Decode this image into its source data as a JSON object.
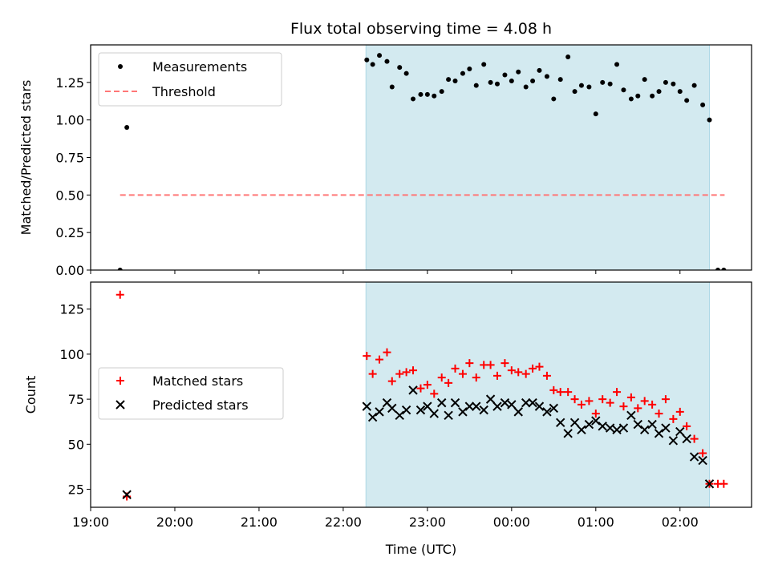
{
  "chart_data": {
    "title": "Flux total observing time = 4.08 h",
    "xlabel": "Time (UTC)",
    "x_ticks": [
      "19:00",
      "20:00",
      "21:00",
      "22:00",
      "23:00",
      "00:00",
      "01:00",
      "02:00"
    ],
    "xlim_hours": [
      19.0,
      26.85
    ],
    "shaded_interval_hours": [
      22.27,
      26.35
    ],
    "shade_color": "#d3eaf0",
    "panels": [
      {
        "type": "scatter",
        "ylabel": "Matched/Predicted stars",
        "ylim": [
          0,
          1.5
        ],
        "y_ticks": [
          "0.00",
          "0.25",
          "0.50",
          "0.75",
          "1.00",
          "1.25"
        ],
        "y_tick_values": [
          0,
          0.25,
          0.5,
          0.75,
          1.0,
          1.25
        ],
        "legend": {
          "position": "upper-left",
          "entries": [
            "Measurements",
            "Threshold"
          ]
        },
        "series": [
          {
            "name": "Measurements",
            "marker": "dot",
            "color": "#000000",
            "points": [
              [
                19.35,
                0.0
              ],
              [
                19.43,
                0.95
              ],
              [
                22.28,
                1.4
              ],
              [
                22.35,
                1.37
              ],
              [
                22.43,
                1.43
              ],
              [
                22.52,
                1.39
              ],
              [
                22.58,
                1.22
              ],
              [
                22.67,
                1.35
              ],
              [
                22.75,
                1.31
              ],
              [
                22.83,
                1.14
              ],
              [
                22.92,
                1.17
              ],
              [
                23.0,
                1.17
              ],
              [
                23.08,
                1.16
              ],
              [
                23.17,
                1.19
              ],
              [
                23.25,
                1.27
              ],
              [
                23.33,
                1.26
              ],
              [
                23.42,
                1.31
              ],
              [
                23.5,
                1.34
              ],
              [
                23.58,
                1.23
              ],
              [
                23.67,
                1.37
              ],
              [
                23.75,
                1.25
              ],
              [
                23.83,
                1.24
              ],
              [
                23.92,
                1.3
              ],
              [
                24.0,
                1.26
              ],
              [
                24.08,
                1.32
              ],
              [
                24.17,
                1.22
              ],
              [
                24.25,
                1.26
              ],
              [
                24.33,
                1.33
              ],
              [
                24.42,
                1.29
              ],
              [
                24.5,
                1.14
              ],
              [
                24.58,
                1.27
              ],
              [
                24.67,
                1.42
              ],
              [
                24.75,
                1.19
              ],
              [
                24.83,
                1.23
              ],
              [
                24.92,
                1.22
              ],
              [
                25.0,
                1.04
              ],
              [
                25.08,
                1.25
              ],
              [
                25.17,
                1.24
              ],
              [
                25.25,
                1.37
              ],
              [
                25.33,
                1.2
              ],
              [
                25.42,
                1.14
              ],
              [
                25.5,
                1.16
              ],
              [
                25.58,
                1.27
              ],
              [
                25.67,
                1.16
              ],
              [
                25.75,
                1.19
              ],
              [
                25.83,
                1.25
              ],
              [
                25.92,
                1.24
              ],
              [
                26.0,
                1.19
              ],
              [
                26.08,
                1.13
              ],
              [
                26.17,
                1.23
              ],
              [
                26.27,
                1.1
              ],
              [
                26.35,
                1.0
              ],
              [
                26.45,
                0.0
              ],
              [
                26.52,
                0.0
              ]
            ]
          },
          {
            "name": "Threshold",
            "style": "dashed",
            "color": "#ff7777",
            "points": [
              [
                19.35,
                0.5
              ],
              [
                26.53,
                0.5
              ]
            ]
          }
        ]
      },
      {
        "type": "scatter",
        "ylabel": "Count",
        "ylim": [
          15,
          140
        ],
        "y_ticks": [
          "25",
          "50",
          "75",
          "100",
          "125"
        ],
        "y_tick_values": [
          25,
          50,
          75,
          100,
          125
        ],
        "legend": {
          "position": "center-left",
          "entries": [
            "Matched stars",
            "Predicted stars"
          ]
        },
        "series": [
          {
            "name": "Matched stars",
            "marker": "plus",
            "color": "#ff0000",
            "points": [
              [
                19.35,
                133
              ],
              [
                19.43,
                21
              ],
              [
                22.28,
                99
              ],
              [
                22.35,
                89
              ],
              [
                22.43,
                97
              ],
              [
                22.52,
                101
              ],
              [
                22.58,
                85
              ],
              [
                22.67,
                89
              ],
              [
                22.75,
                90
              ],
              [
                22.83,
                91
              ],
              [
                22.92,
                81
              ],
              [
                23.0,
                83
              ],
              [
                23.08,
                78
              ],
              [
                23.17,
                87
              ],
              [
                23.25,
                84
              ],
              [
                23.33,
                92
              ],
              [
                23.42,
                89
              ],
              [
                23.5,
                95
              ],
              [
                23.58,
                87
              ],
              [
                23.67,
                94
              ],
              [
                23.75,
                94
              ],
              [
                23.83,
                88
              ],
              [
                23.92,
                95
              ],
              [
                24.0,
                91
              ],
              [
                24.08,
                90
              ],
              [
                24.17,
                89
              ],
              [
                24.25,
                92
              ],
              [
                24.33,
                93
              ],
              [
                24.42,
                88
              ],
              [
                24.5,
                80
              ],
              [
                24.58,
                79
              ],
              [
                24.67,
                79
              ],
              [
                24.75,
                75
              ],
              [
                24.83,
                72
              ],
              [
                24.92,
                74
              ],
              [
                25.0,
                67
              ],
              [
                25.08,
                75
              ],
              [
                25.17,
                73
              ],
              [
                25.25,
                79
              ],
              [
                25.33,
                71
              ],
              [
                25.42,
                76
              ],
              [
                25.5,
                70
              ],
              [
                25.58,
                74
              ],
              [
                25.67,
                72
              ],
              [
                25.75,
                67
              ],
              [
                25.83,
                75
              ],
              [
                25.92,
                64
              ],
              [
                26.0,
                68
              ],
              [
                26.08,
                60
              ],
              [
                26.17,
                53
              ],
              [
                26.27,
                45
              ],
              [
                26.35,
                28
              ],
              [
                26.45,
                28
              ],
              [
                26.52,
                28
              ]
            ]
          },
          {
            "name": "Predicted stars",
            "marker": "x",
            "color": "#000000",
            "points": [
              [
                19.43,
                22
              ],
              [
                22.28,
                71
              ],
              [
                22.35,
                65
              ],
              [
                22.43,
                68
              ],
              [
                22.52,
                73
              ],
              [
                22.58,
                70
              ],
              [
                22.67,
                66
              ],
              [
                22.75,
                69
              ],
              [
                22.83,
                80
              ],
              [
                22.92,
                69
              ],
              [
                23.0,
                71
              ],
              [
                23.08,
                67
              ],
              [
                23.17,
                73
              ],
              [
                23.25,
                66
              ],
              [
                23.33,
                73
              ],
              [
                23.42,
                68
              ],
              [
                23.5,
                71
              ],
              [
                23.58,
                71
              ],
              [
                23.67,
                69
              ],
              [
                23.75,
                75
              ],
              [
                23.83,
                71
              ],
              [
                23.92,
                73
              ],
              [
                24.0,
                72
              ],
              [
                24.08,
                68
              ],
              [
                24.17,
                73
              ],
              [
                24.25,
                73
              ],
              [
                24.33,
                71
              ],
              [
                24.42,
                68
              ],
              [
                24.5,
                70
              ],
              [
                24.58,
                62
              ],
              [
                24.67,
                56
              ],
              [
                24.75,
                62
              ],
              [
                24.83,
                58
              ],
              [
                24.92,
                61
              ],
              [
                25.0,
                63
              ],
              [
                25.08,
                60
              ],
              [
                25.17,
                59
              ],
              [
                25.25,
                58
              ],
              [
                25.33,
                59
              ],
              [
                25.42,
                66
              ],
              [
                25.5,
                61
              ],
              [
                25.58,
                58
              ],
              [
                25.67,
                61
              ],
              [
                25.75,
                56
              ],
              [
                25.83,
                59
              ],
              [
                25.92,
                52
              ],
              [
                26.0,
                57
              ],
              [
                26.08,
                53
              ],
              [
                26.17,
                43
              ],
              [
                26.27,
                41
              ],
              [
                26.35,
                28
              ]
            ]
          }
        ]
      }
    ]
  }
}
